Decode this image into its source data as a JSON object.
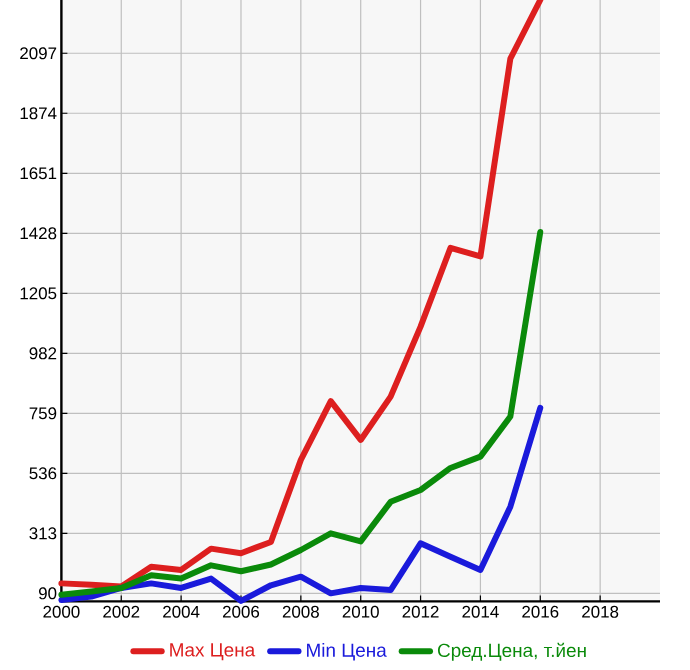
{
  "chart_data": {
    "type": "line",
    "x": [
      2000,
      2001,
      2002,
      2003,
      2004,
      2005,
      2006,
      2007,
      2008,
      2009,
      2010,
      2011,
      2012,
      2013,
      2014,
      2015,
      2016
    ],
    "xlim": [
      2000,
      2020
    ],
    "xticks": [
      2000,
      2002,
      2004,
      2006,
      2008,
      2010,
      2012,
      2014,
      2016,
      2018
    ],
    "ylim": [
      60,
      2295
    ],
    "yticks": [
      90,
      313,
      536,
      759,
      982,
      1205,
      1428,
      1651,
      1874,
      2097
    ],
    "grid": true,
    "legend": "bottom",
    "series": [
      {
        "name": "Max Цена",
        "color": "#dd1f1f",
        "values": [
          127,
          122,
          115,
          189,
          177,
          256,
          239,
          281,
          586,
          804,
          660,
          821,
          1081,
          1374,
          1342,
          2077,
          2295
        ]
      },
      {
        "name": "Min Цена",
        "color": "#1a1adb",
        "values": [
          65,
          78,
          110,
          127,
          110,
          145,
          62,
          120,
          152,
          90,
          110,
          102,
          276,
          226,
          177,
          412,
          779
        ]
      },
      {
        "name": "Сред.Цена, т.йен",
        "color": "#0a8a0a",
        "values": [
          85,
          97,
          110,
          157,
          145,
          194,
          172,
          197,
          251,
          313,
          283,
          430,
          474,
          556,
          598,
          747,
          1433
        ]
      }
    ]
  }
}
